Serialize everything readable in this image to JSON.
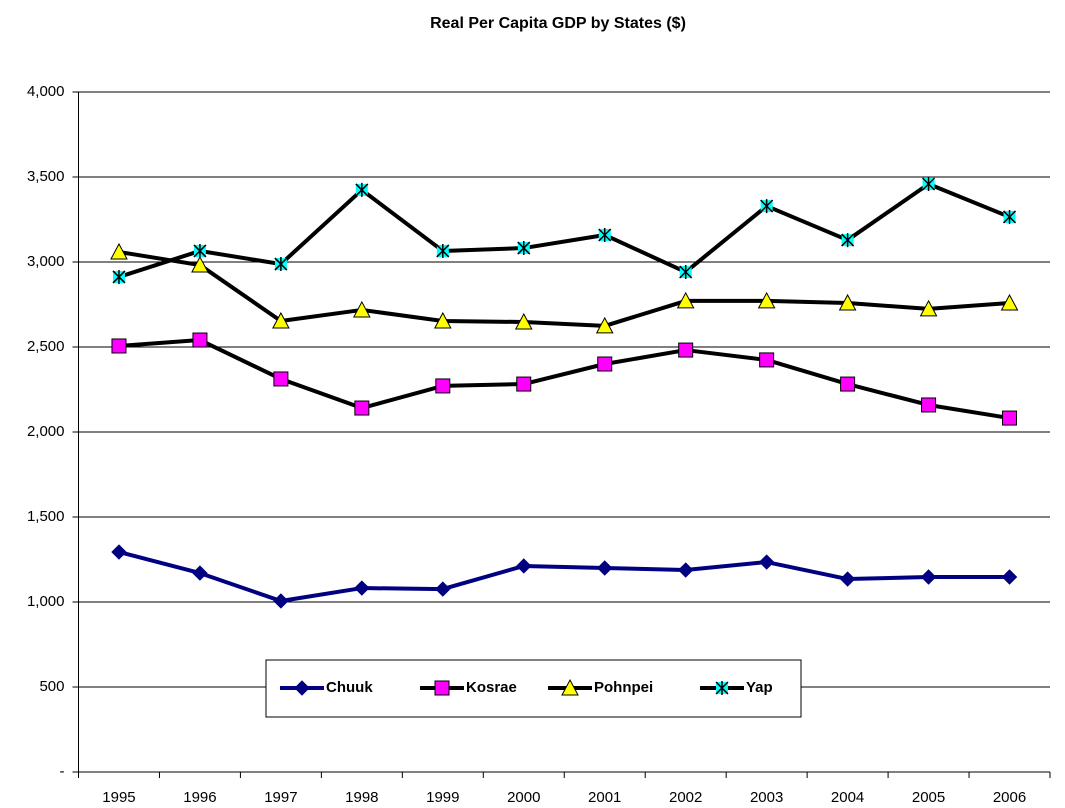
{
  "chart_data": {
    "type": "line",
    "title": "Real Per Capita GDP by States ($)",
    "categories": [
      "1995",
      "1996",
      "1997",
      "1998",
      "1999",
      "2000",
      "2001",
      "2002",
      "2003",
      "2004",
      "2005",
      "2006"
    ],
    "series": [
      {
        "name": "Chuuk",
        "color": "#000080",
        "marker": "diamond",
        "marker_color": "#000080",
        "values": [
          1294,
          1170,
          1006,
          1082,
          1076,
          1212,
          1200,
          1188,
          1235,
          1135,
          1147,
          1147
        ]
      },
      {
        "name": "Kosrae",
        "color": "#000000",
        "marker": "square",
        "marker_color": "#ff00ff",
        "values": [
          2506,
          2541,
          2312,
          2141,
          2271,
          2282,
          2400,
          2482,
          2424,
          2282,
          2159,
          2082
        ]
      },
      {
        "name": "Pohnpei",
        "color": "#000000",
        "marker": "triangle",
        "marker_color": "#ffff00",
        "values": [
          3059,
          2982,
          2653,
          2718,
          2653,
          2647,
          2624,
          2771,
          2771,
          2759,
          2724,
          2759
        ]
      },
      {
        "name": "Yap",
        "color": "#000000",
        "marker": "asterisk",
        "marker_color": "#00ffff",
        "values": [
          2912,
          3065,
          2988,
          3424,
          3065,
          3082,
          3159,
          2941,
          3329,
          3129,
          3459,
          3265
        ]
      }
    ],
    "ylim": [
      0,
      4000
    ],
    "yticks": [
      {
        "value": 0,
        "label": "-"
      },
      500,
      {
        "value": 1000,
        "label": "1,000"
      },
      {
        "value": 1500,
        "label": "1,500"
      },
      {
        "value": 2000,
        "label": "2,000"
      },
      {
        "value": 2500,
        "label": "2,500"
      },
      {
        "value": 3000,
        "label": "3,000"
      },
      {
        "value": 3500,
        "label": "3,500"
      },
      {
        "value": 4000,
        "label": "4,000"
      }
    ],
    "grid": true,
    "legend": "lower center"
  }
}
